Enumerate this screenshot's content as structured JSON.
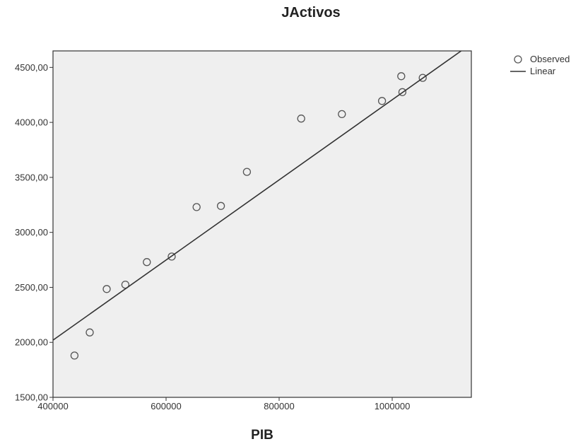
{
  "chart_data": {
    "type": "scatter",
    "title": "JActivos",
    "xlabel": "PIB",
    "ylabel": "",
    "xlim": [
      400000,
      1140000
    ],
    "ylim": [
      1500,
      4650
    ],
    "x_ticks": [
      400000,
      600000,
      800000,
      1000000
    ],
    "x_tick_labels": [
      "400000",
      "600000",
      "800000",
      "1000000"
    ],
    "y_ticks": [
      1500,
      2000,
      2500,
      3000,
      3500,
      4000,
      4500
    ],
    "y_tick_labels": [
      "1500,00",
      "2000,00",
      "2500,00",
      "3000,00",
      "3500,00",
      "4000,00",
      "4500,00"
    ],
    "grid": false,
    "legend_position": "top-right",
    "legend": [
      "Observed",
      "Linear"
    ],
    "colors": {
      "plot_bg": "#efefef",
      "marker": "#555555",
      "line": "#333333",
      "frame": "#333333"
    },
    "series": [
      {
        "name": "Observed",
        "kind": "scatter",
        "points": [
          [
            438000,
            1880
          ],
          [
            465000,
            2090
          ],
          [
            495000,
            2485
          ],
          [
            528000,
            2525
          ],
          [
            566000,
            2730
          ],
          [
            610000,
            2780
          ],
          [
            654000,
            3230
          ],
          [
            697000,
            3240
          ],
          [
            743000,
            3550
          ],
          [
            839000,
            4035
          ],
          [
            911000,
            4075
          ],
          [
            982000,
            4195
          ],
          [
            1016000,
            4420
          ],
          [
            1018000,
            4275
          ],
          [
            1054000,
            4405
          ]
        ]
      },
      {
        "name": "Linear",
        "kind": "line",
        "points": [
          [
            400000,
            2020
          ],
          [
            1122000,
            4650
          ]
        ]
      }
    ]
  }
}
